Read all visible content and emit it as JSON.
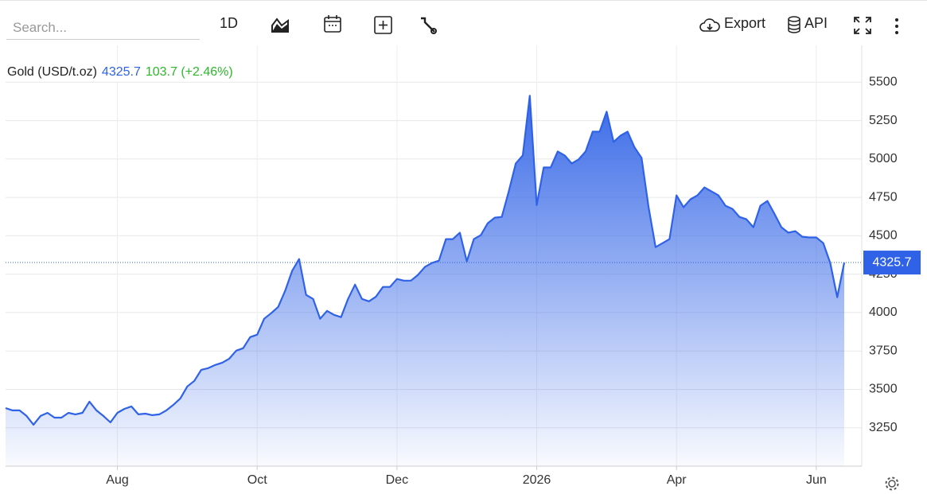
{
  "toolbar": {
    "search_placeholder": "Search...",
    "interval": "1D",
    "export": "Export",
    "api": "API"
  },
  "chart_data": {
    "type": "area",
    "title": "Gold (USD/t.oz)",
    "change_label": "103.7 (+2.46%)",
    "categories": [
      null,
      null,
      null,
      null,
      null,
      null,
      null,
      null,
      null,
      null,
      null,
      null,
      null,
      null,
      null,
      null,
      "Aug",
      null,
      null,
      null,
      null,
      null,
      null,
      null,
      null,
      null,
      null,
      null,
      null,
      null,
      null,
      null,
      null,
      null,
      null,
      null,
      "Oct",
      null,
      null,
      null,
      null,
      null,
      null,
      null,
      null,
      null,
      null,
      null,
      null,
      null,
      null,
      null,
      null,
      null,
      null,
      null,
      "Dec",
      null,
      null,
      null,
      null,
      null,
      null,
      null,
      null,
      null,
      null,
      null,
      null,
      null,
      null,
      null,
      null,
      null,
      null,
      null,
      "2026",
      null,
      null,
      null,
      null,
      null,
      null,
      null,
      null,
      null,
      null,
      null,
      null,
      null,
      null,
      null,
      null,
      null,
      null,
      null,
      "Apr",
      null,
      null,
      null,
      null,
      null,
      null,
      null,
      null,
      null,
      null,
      null,
      null,
      null,
      null,
      null,
      null,
      null,
      null,
      null,
      "Jun",
      null,
      null,
      null,
      null
    ],
    "values": [
      3378,
      3363,
      3363,
      3327,
      3270,
      3327,
      3347,
      3316,
      3316,
      3347,
      3337,
      3347,
      3420,
      3363,
      3327,
      3285,
      3347,
      3373,
      3389,
      3337,
      3342,
      3332,
      3337,
      3363,
      3399,
      3441,
      3519,
      3555,
      3627,
      3638,
      3659,
      3674,
      3700,
      3752,
      3768,
      3840,
      3856,
      3960,
      3996,
      4037,
      4141,
      4271,
      4348,
      4115,
      4089,
      3960,
      4011,
      3985,
      3970,
      4089,
      4182,
      4089,
      4073,
      4104,
      4167,
      4167,
      4219,
      4208,
      4208,
      4245,
      4297,
      4323,
      4338,
      4478,
      4478,
      4520,
      4333,
      4478,
      4504,
      4582,
      4618,
      4623,
      4789,
      4971,
      5023,
      5412,
      4700,
      4945,
      4945,
      5049,
      5023,
      4971,
      4997,
      5049,
      5178,
      5178,
      5308,
      5111,
      5152,
      5178,
      5075,
      5007,
      4686,
      4426,
      4452,
      4478,
      4763,
      4686,
      4738,
      4763,
      4815,
      4789,
      4763,
      4696,
      4675,
      4623,
      4608,
      4556,
      4696,
      4727,
      4644,
      4556,
      4520,
      4530,
      4494,
      4489,
      4489,
      4452,
      4323,
      4100,
      4325.7
    ],
    "color": "#2f62e6",
    "ylim": [
      3000,
      5740
    ],
    "yticks": [
      3250,
      3500,
      3750,
      4000,
      4250,
      4500,
      4750,
      5000,
      5250,
      5500
    ],
    "grid": true
  }
}
